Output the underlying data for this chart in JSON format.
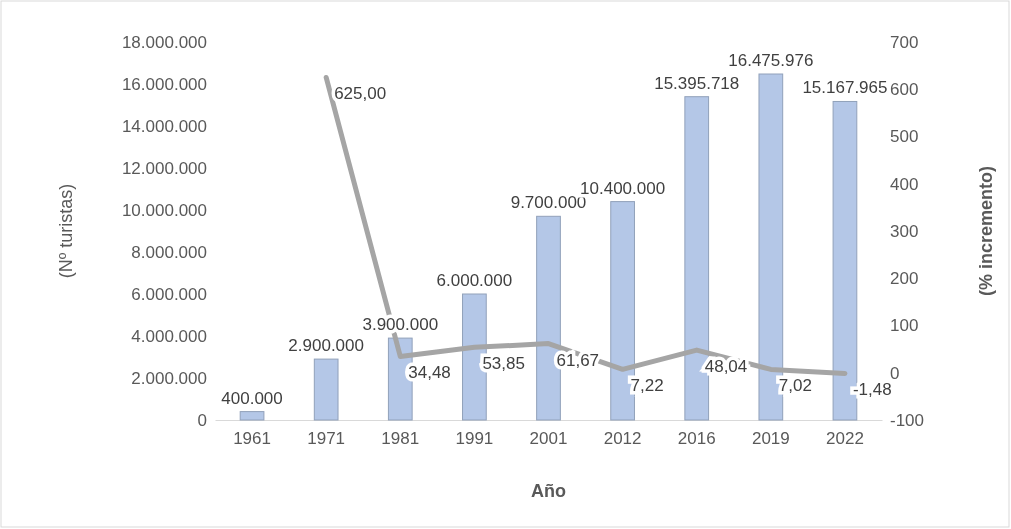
{
  "chart_data": {
    "type": "bar",
    "categories": [
      "1961",
      "1971",
      "1981",
      "1991",
      "2001",
      "2012",
      "2016",
      "2019",
      "2022"
    ],
    "xlabel": "Año",
    "ylabel": "(Nº turistas)",
    "y2label": "(% incremento)",
    "series": [
      {
        "color": "#b4c7e7",
        "values": [
          400000,
          2900000,
          3900000,
          6000000,
          9700000,
          10400000,
          15395718,
          16475976,
          15167965
        ],
        "value_labels": [
          "400.000",
          "2.900.000",
          "3.900.000",
          "6.000.000",
          "9.700.000",
          "10.400.000",
          "15.395.718",
          "16.475.976",
          "15.167.965"
        ]
      },
      {
        "type": "line",
        "axis": "y2",
        "color": "#a5a5a5",
        "marker": "none",
        "values": [
          null,
          625,
          34.48,
          53.85,
          61.67,
          7.22,
          48.04,
          7.02,
          -1.48
        ],
        "value_labels": [
          null,
          "625,00",
          "34,48",
          "53,85",
          "61,67",
          "7,22",
          "48,04",
          "7,02",
          "-1,48"
        ]
      }
    ],
    "ylim": [
      0,
      18000000
    ],
    "yticks": [
      {
        "value": 0,
        "label": "0"
      },
      {
        "value": 2000000,
        "label": "2.000.000"
      },
      {
        "value": 4000000,
        "label": "4.000.000"
      },
      {
        "value": 6000000,
        "label": "6.000.000"
      },
      {
        "value": 8000000,
        "label": "8.000.000"
      },
      {
        "value": 10000000,
        "label": "10.000.000"
      },
      {
        "value": 12000000,
        "label": "12.000.000"
      },
      {
        "value": 14000000,
        "label": "14.000.000"
      },
      {
        "value": 16000000,
        "label": "16.000.000"
      },
      {
        "value": 18000000,
        "label": "18.000.000"
      }
    ],
    "y2lim": [
      -100,
      700
    ],
    "y2ticks": [
      -100,
      0,
      100,
      200,
      300,
      400,
      500,
      600,
      700
    ],
    "grid": false
  }
}
